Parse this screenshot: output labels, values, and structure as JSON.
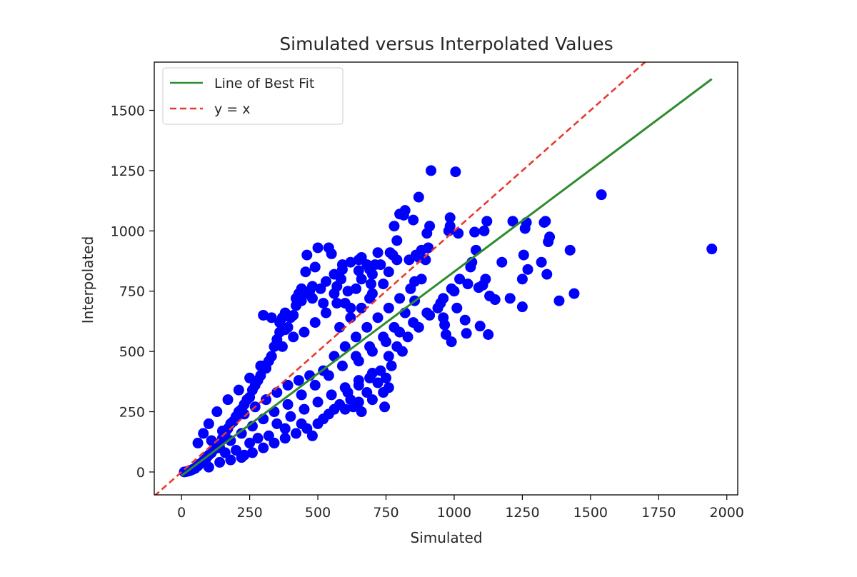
{
  "chart_data": {
    "type": "scatter",
    "title": "Simulated versus Interpolated Values",
    "xlabel": "Simulated",
    "ylabel": "Interpolated",
    "xlim": [
      -100,
      2040
    ],
    "ylim": [
      -95,
      1700
    ],
    "xticks": [
      0,
      250,
      500,
      750,
      1000,
      1250,
      1500,
      1750,
      2000
    ],
    "yticks": [
      0,
      250,
      500,
      750,
      1000,
      1250,
      1500
    ],
    "xtick_labels": [
      "0",
      "250",
      "500",
      "750",
      "1000",
      "1250",
      "1500",
      "1750",
      "2000"
    ],
    "ytick_labels": [
      "0",
      "250",
      "500",
      "750",
      "1000",
      "1250",
      "1500"
    ],
    "grid": false,
    "legend_position": "top-left",
    "colors": {
      "points": "#0000ff",
      "fit": "#2e8b2e",
      "identity": "#e8392f"
    },
    "series": [
      {
        "name": "",
        "kind": "scatter",
        "points": [
          [
            1945,
            925
          ],
          [
            1540,
            1150
          ],
          [
            1440,
            740
          ],
          [
            1425,
            920
          ],
          [
            1385,
            710
          ],
          [
            1350,
            975
          ],
          [
            1345,
            955
          ],
          [
            1340,
            820
          ],
          [
            1335,
            1040
          ],
          [
            1330,
            1035
          ],
          [
            1320,
            870
          ],
          [
            1265,
            1035
          ],
          [
            1270,
            840
          ],
          [
            1260,
            1010
          ],
          [
            1255,
            900
          ],
          [
            1250,
            800
          ],
          [
            1250,
            685
          ],
          [
            1215,
            1040
          ],
          [
            1205,
            720
          ],
          [
            1175,
            870
          ],
          [
            1150,
            715
          ],
          [
            1130,
            730
          ],
          [
            1115,
            800
          ],
          [
            1120,
            1040
          ],
          [
            1125,
            570
          ],
          [
            1110,
            1000
          ],
          [
            1105,
            775
          ],
          [
            1095,
            605
          ],
          [
            1090,
            765
          ],
          [
            1080,
            920
          ],
          [
            1075,
            995
          ],
          [
            1065,
            870
          ],
          [
            1060,
            850
          ],
          [
            1045,
            575
          ],
          [
            1040,
            630
          ],
          [
            1015,
            990
          ],
          [
            1010,
            680
          ],
          [
            1005,
            1245
          ],
          [
            990,
            540
          ],
          [
            985,
            1020
          ],
          [
            985,
            1055
          ],
          [
            980,
            1000
          ],
          [
            970,
            570
          ],
          [
            965,
            610
          ],
          [
            960,
            640
          ],
          [
            915,
            1250
          ],
          [
            910,
            1020
          ],
          [
            905,
            930
          ],
          [
            900,
            990
          ],
          [
            895,
            880
          ],
          [
            880,
            920
          ],
          [
            870,
            1140
          ],
          [
            870,
            890
          ],
          [
            860,
            900
          ],
          [
            855,
            790
          ],
          [
            855,
            710
          ],
          [
            850,
            1045
          ],
          [
            835,
            880
          ],
          [
            820,
            1085
          ],
          [
            815,
            1065
          ],
          [
            800,
            1070
          ],
          [
            790,
            960
          ],
          [
            790,
            880
          ],
          [
            780,
            1020
          ],
          [
            775,
            900
          ],
          [
            765,
            910
          ],
          [
            760,
            350
          ],
          [
            750,
            390
          ],
          [
            745,
            270
          ],
          [
            740,
            330
          ],
          [
            720,
            910
          ],
          [
            710,
            860
          ],
          [
            700,
            820
          ],
          [
            695,
            780
          ],
          [
            690,
            720
          ],
          [
            660,
            890
          ],
          [
            650,
            835
          ],
          [
            640,
            760
          ],
          [
            620,
            680
          ],
          [
            600,
            700
          ],
          [
            590,
            860
          ],
          [
            585,
            800
          ],
          [
            570,
            770
          ],
          [
            560,
            740
          ],
          [
            550,
            905
          ],
          [
            540,
            930
          ],
          [
            520,
            700
          ],
          [
            500,
            930
          ],
          [
            490,
            850
          ],
          [
            480,
            770
          ],
          [
            470,
            750
          ],
          [
            460,
            900
          ],
          [
            455,
            830
          ],
          [
            440,
            760
          ],
          [
            430,
            740
          ],
          [
            420,
            720
          ],
          [
            410,
            650
          ],
          [
            400,
            640
          ],
          [
            390,
            600
          ],
          [
            380,
            590
          ],
          [
            370,
            640
          ],
          [
            360,
            580
          ],
          [
            350,
            550
          ],
          [
            340,
            520
          ],
          [
            330,
            480
          ],
          [
            320,
            460
          ],
          [
            310,
            430
          ],
          [
            300,
            440
          ],
          [
            290,
            400
          ],
          [
            280,
            380
          ],
          [
            270,
            360
          ],
          [
            260,
            340
          ],
          [
            250,
            310
          ],
          [
            240,
            300
          ],
          [
            230,
            280
          ],
          [
            220,
            260
          ],
          [
            210,
            250
          ],
          [
            200,
            230
          ],
          [
            190,
            210
          ],
          [
            180,
            200
          ],
          [
            170,
            180
          ],
          [
            160,
            160
          ],
          [
            150,
            140
          ],
          [
            140,
            120
          ],
          [
            130,
            110
          ],
          [
            120,
            95
          ],
          [
            110,
            80
          ],
          [
            100,
            70
          ],
          [
            90,
            55
          ],
          [
            80,
            45
          ],
          [
            70,
            35
          ],
          [
            60,
            25
          ],
          [
            50,
            15
          ],
          [
            40,
            10
          ],
          [
            30,
            5
          ],
          [
            20,
            2
          ],
          [
            10,
            0
          ],
          [
            350,
            200
          ],
          [
            400,
            230
          ],
          [
            450,
            260
          ],
          [
            500,
            290
          ],
          [
            550,
            320
          ],
          [
            600,
            350
          ],
          [
            650,
            380
          ],
          [
            700,
            410
          ],
          [
            320,
            150
          ],
          [
            380,
            180
          ],
          [
            440,
            200
          ],
          [
            480,
            150
          ],
          [
            520,
            220
          ],
          [
            560,
            260
          ],
          [
            620,
            300
          ],
          [
            680,
            330
          ],
          [
            720,
            370
          ],
          [
            250,
            120
          ],
          [
            280,
            140
          ],
          [
            200,
            90
          ],
          [
            220,
            60
          ],
          [
            180,
            50
          ],
          [
            160,
            80
          ],
          [
            140,
            40
          ],
          [
            100,
            20
          ],
          [
            600,
            260
          ],
          [
            650,
            290
          ],
          [
            700,
            300
          ],
          [
            660,
            250
          ],
          [
            630,
            270
          ],
          [
            580,
            280
          ],
          [
            540,
            240
          ],
          [
            500,
            200
          ],
          [
            460,
            180
          ],
          [
            420,
            160
          ],
          [
            380,
            140
          ],
          [
            340,
            120
          ],
          [
            300,
            100
          ],
          [
            260,
            80
          ],
          [
            230,
            70
          ],
          [
            520,
            420
          ],
          [
            560,
            480
          ],
          [
            600,
            520
          ],
          [
            640,
            560
          ],
          [
            680,
            600
          ],
          [
            720,
            640
          ],
          [
            760,
            680
          ],
          [
            800,
            720
          ],
          [
            840,
            760
          ],
          [
            880,
            800
          ],
          [
            470,
            400
          ],
          [
            430,
            380
          ],
          [
            390,
            360
          ],
          [
            350,
            330
          ],
          [
            310,
            300
          ],
          [
            270,
            270
          ],
          [
            230,
            240
          ],
          [
            190,
            210
          ],
          [
            150,
            170
          ],
          [
            110,
            130
          ],
          [
            650,
            460
          ],
          [
            700,
            500
          ],
          [
            750,
            540
          ],
          [
            800,
            580
          ],
          [
            850,
            620
          ],
          [
            900,
            660
          ],
          [
            950,
            700
          ],
          [
            1000,
            750
          ],
          [
            1050,
            780
          ],
          [
            820,
            660
          ],
          [
            780,
            600
          ],
          [
            740,
            560
          ],
          [
            690,
            520
          ],
          [
            640,
            480
          ],
          [
            590,
            440
          ],
          [
            540,
            400
          ],
          [
            490,
            360
          ],
          [
            440,
            320
          ],
          [
            390,
            280
          ],
          [
            340,
            250
          ],
          [
            300,
            220
          ],
          [
            260,
            190
          ],
          [
            220,
            160
          ],
          [
            180,
            130
          ],
          [
            140,
            100
          ],
          [
            760,
            480
          ],
          [
            790,
            520
          ],
          [
            830,
            560
          ],
          [
            870,
            600
          ],
          [
            910,
            650
          ],
          [
            940,
            680
          ],
          [
            960,
            720
          ],
          [
            990,
            760
          ],
          [
            1020,
            800
          ],
          [
            810,
            500
          ],
          [
            770,
            440
          ],
          [
            730,
            420
          ],
          [
            690,
            390
          ],
          [
            650,
            360
          ],
          [
            610,
            330
          ],
          [
            580,
            600
          ],
          [
            620,
            640
          ],
          [
            660,
            680
          ],
          [
            700,
            740
          ],
          [
            740,
            780
          ],
          [
            760,
            830
          ],
          [
            730,
            860
          ],
          [
            690,
            840
          ],
          [
            660,
            800
          ],
          [
            610,
            750
          ],
          [
            570,
            700
          ],
          [
            530,
            660
          ],
          [
            490,
            620
          ],
          [
            450,
            580
          ],
          [
            410,
            560
          ],
          [
            370,
            520
          ],
          [
            330,
            480
          ],
          [
            290,
            440
          ],
          [
            250,
            390
          ],
          [
            210,
            340
          ],
          [
            170,
            300
          ],
          [
            130,
            250
          ],
          [
            100,
            200
          ],
          [
            80,
            160
          ],
          [
            60,
            120
          ],
          [
            300,
            650
          ],
          [
            330,
            640
          ],
          [
            360,
            620
          ],
          [
            380,
            660
          ],
          [
            420,
            690
          ],
          [
            440,
            710
          ],
          [
            460,
            740
          ],
          [
            480,
            720
          ],
          [
            510,
            760
          ],
          [
            530,
            790
          ],
          [
            560,
            820
          ],
          [
            590,
            840
          ],
          [
            620,
            870
          ],
          [
            650,
            880
          ],
          [
            680,
            860
          ]
        ]
      },
      {
        "name": "Line of Best Fit",
        "kind": "line",
        "x": [
          0,
          1945
        ],
        "y": [
          -15,
          1630
        ]
      },
      {
        "name": "y = x",
        "kind": "dashed-line",
        "x": [
          -100,
          1700
        ],
        "y": [
          -100,
          1700
        ]
      }
    ]
  }
}
